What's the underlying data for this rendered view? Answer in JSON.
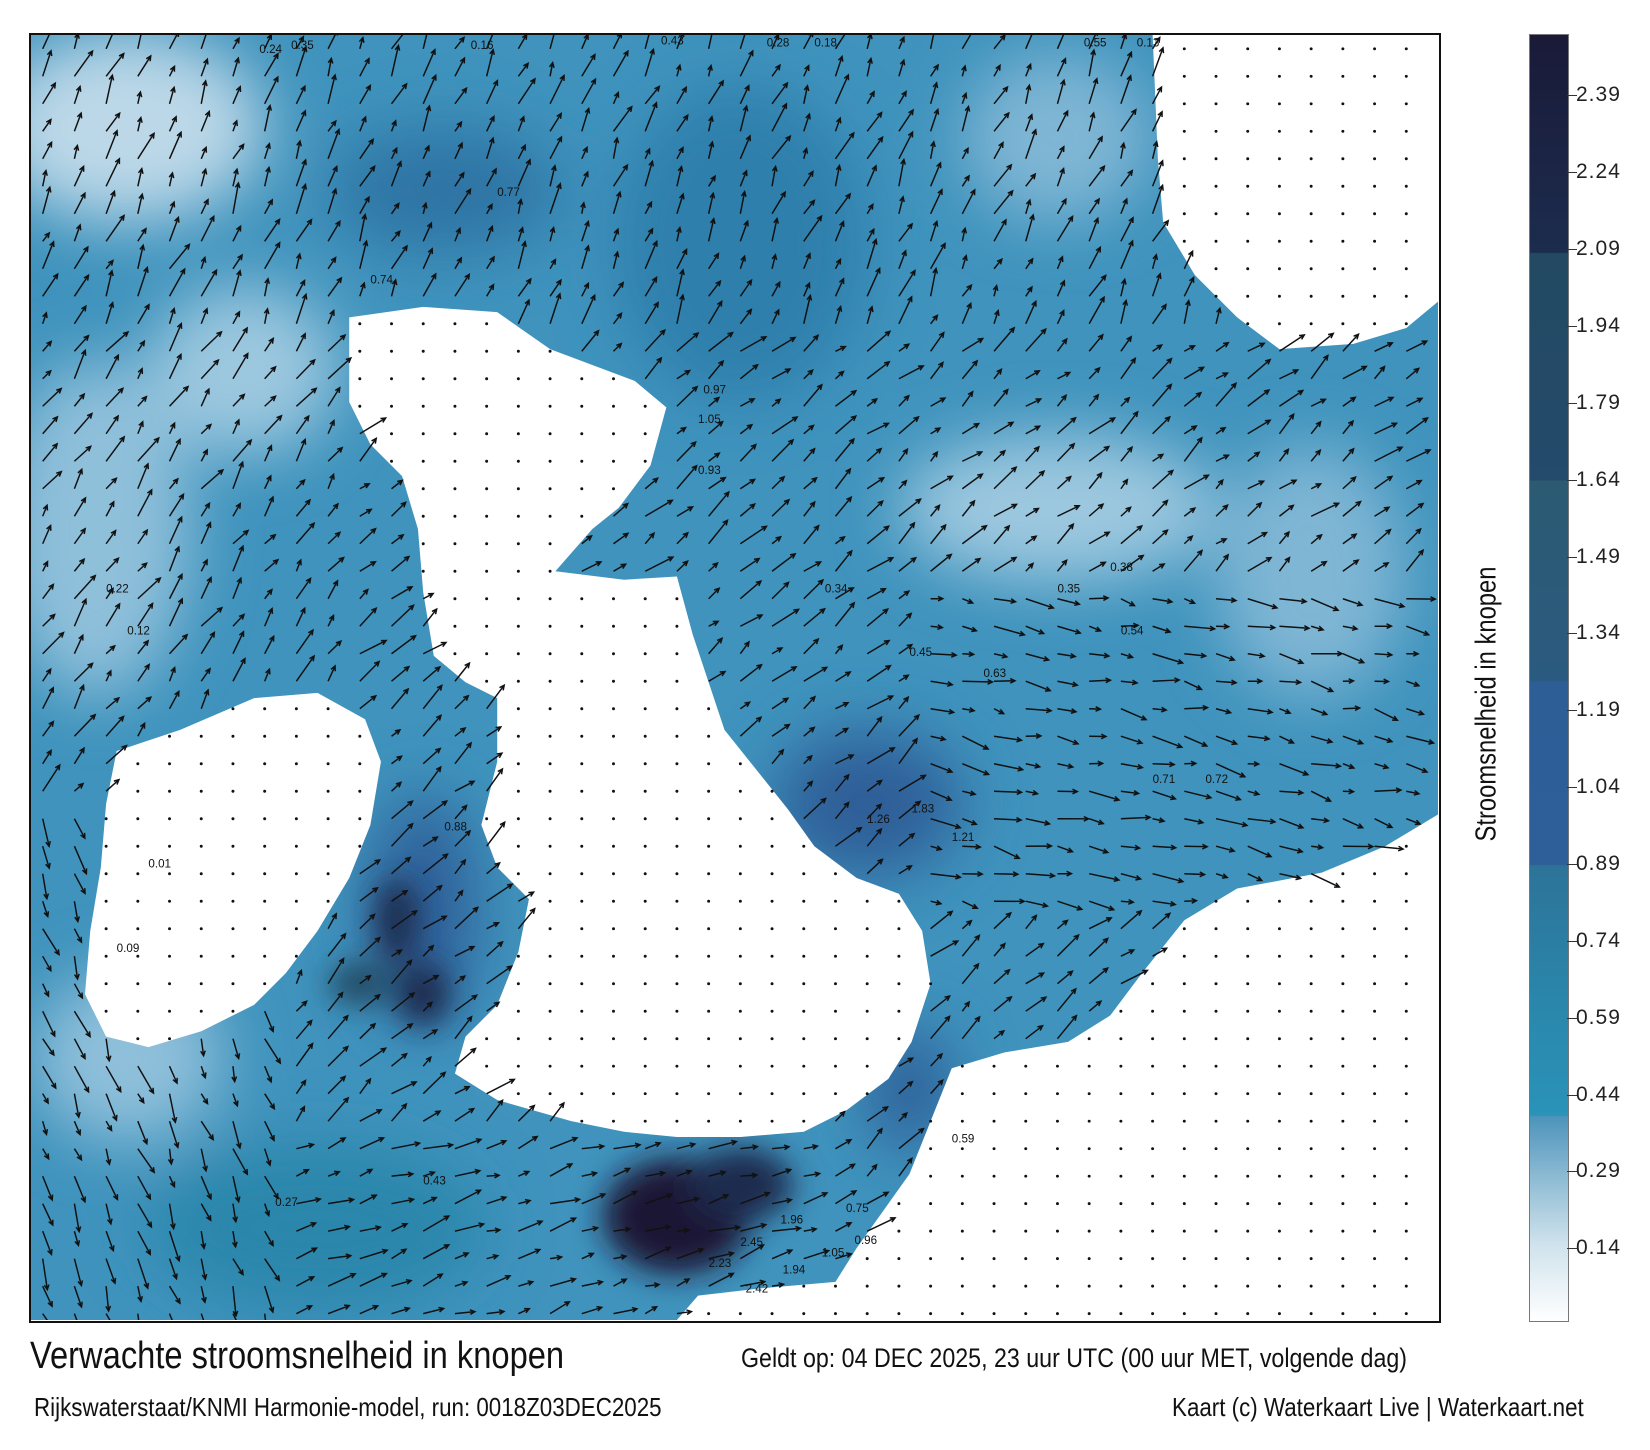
{
  "map": {
    "footer_title": "Verwachte stroomsnelheid in knopen",
    "valid_time": "Geldt op: 04 DEC 2025, 23 uur UTC (00 uur MET, volgende dag)",
    "model_run": "Rijkswaterstaat/KNMI Harmonie-model, run: 0018Z03DEC2025",
    "credit": "Kaart (c) Waterkaart Live | Waterkaart.net"
  },
  "colorbar": {
    "title": "Stroomsnelheid in knopen",
    "range": [
      0,
      2.51
    ],
    "ticks": [
      "2.39",
      "2.24",
      "2.09",
      "1.94",
      "1.79",
      "1.64",
      "1.49",
      "1.34",
      "1.19",
      "1.04",
      "0.89",
      "0.74",
      "0.59",
      "0.44",
      "0.29",
      "0.14"
    ],
    "colors": {
      "low": "#ffffff",
      "mid": "#2a93b8",
      "high": "#1a1a38",
      "land": "#ffffff"
    }
  },
  "labels": [
    "0.24",
    "0.35",
    "0.16",
    "0.43",
    "0.28",
    "0.18",
    "0.55",
    "0.13",
    "0.77",
    "0.74",
    "1.05",
    "0.97",
    "0.88",
    "1.26",
    "1.83",
    "2.45",
    "2.23",
    "2.42",
    "1.94",
    "1.96",
    "1.05",
    "0.96",
    "0.75",
    "0.93",
    "1.21",
    "0.71",
    "0.72",
    "0.54",
    "0.45",
    "0.63",
    "0.35",
    "0.38",
    "0.34",
    "0.22",
    "0.12",
    "0.01",
    "0.09",
    "0.59",
    "0.27",
    "0.43"
  ]
}
